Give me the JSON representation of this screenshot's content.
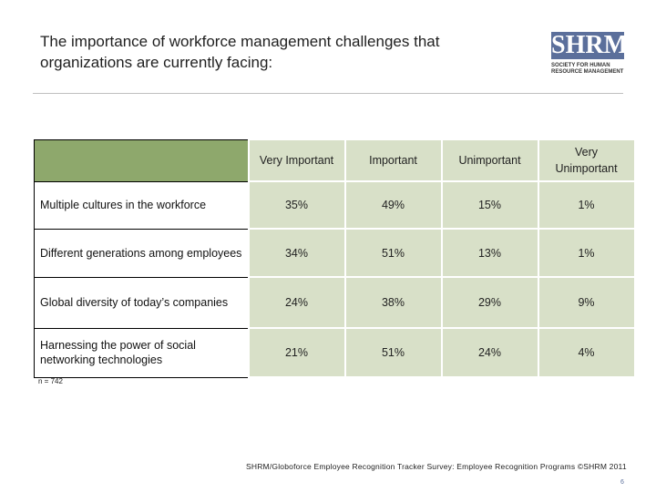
{
  "title_line1": "The importance of workforce management challenges that",
  "title_line2": "organizations are currently facing:",
  "logo": {
    "mark": "SHRM",
    "line1": "SOCIETY FOR HUMAN",
    "line2": "RESOURCE MANAGEMENT",
    "color": "#5b6f9b"
  },
  "table": {
    "headers": [
      "Very Important",
      "Important",
      "Unimportant",
      "Very Unimportant"
    ],
    "rows": [
      {
        "label": "Multiple cultures in the workforce",
        "values": [
          "35%",
          "49%",
          "15%",
          "1%"
        ]
      },
      {
        "label": "Different generations among employees",
        "values": [
          "34%",
          "51%",
          "13%",
          "1%"
        ]
      },
      {
        "label": "Global diversity of today’s companies",
        "values": [
          "24%",
          "38%",
          "29%",
          "9%"
        ]
      },
      {
        "label": "Harnessing the power of social networking technologies",
        "values": [
          "21%",
          "51%",
          "24%",
          "4%"
        ]
      }
    ]
  },
  "note": "n = 742",
  "source": "SHRM/Globoforce Employee Recognition Tracker Survey: Employee Recognition Programs ©SHRM 2011",
  "page_number": "6",
  "colors": {
    "header_fill": "#d8e0c8",
    "corner_fill": "#8ea86c"
  }
}
